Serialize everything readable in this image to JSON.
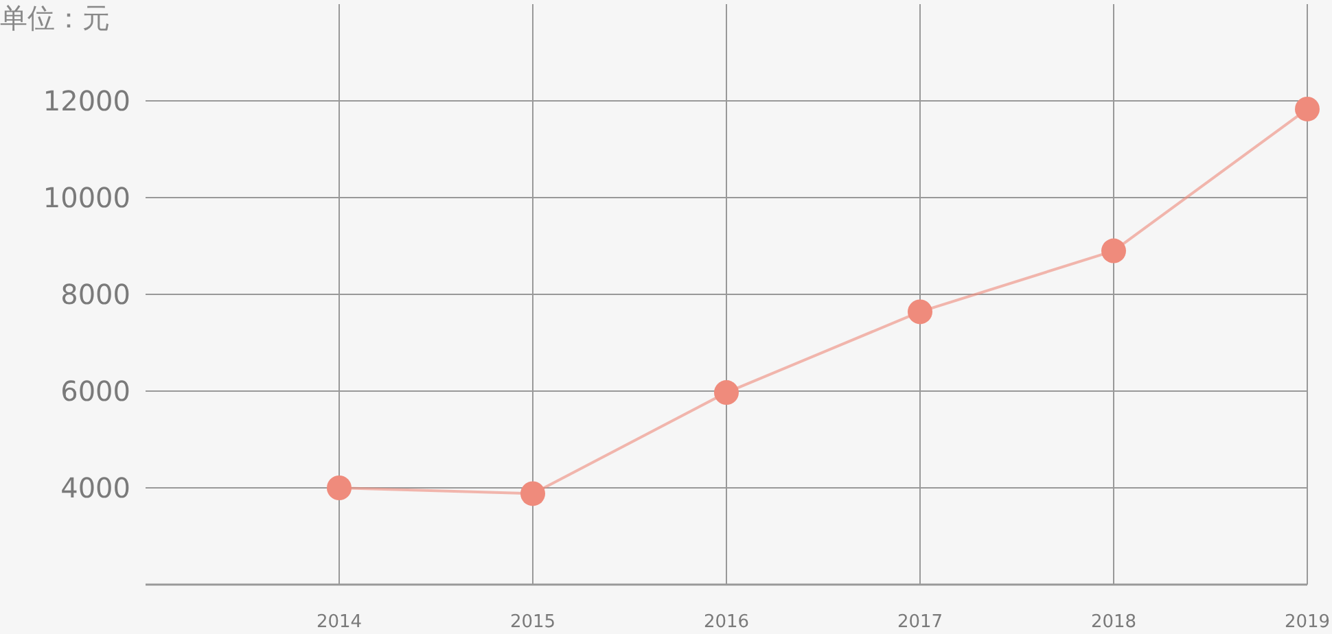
{
  "chart_data": {
    "type": "line",
    "ylabel": "单位：元",
    "x": [
      2014,
      2015,
      2016,
      2017,
      2018,
      2019
    ],
    "series": [
      {
        "color": "#ef8b7c",
        "values": [
          4000,
          3880,
          5970,
          7640,
          8900,
          11830
        ]
      }
    ],
    "xlim": [
      2013,
      2019
    ],
    "xticks": [
      2014,
      2015,
      2016,
      2017,
      2018,
      2019
    ],
    "ylim": [
      2000,
      14000
    ],
    "yticks": [
      4000,
      6000,
      8000,
      10000,
      12000
    ],
    "grid": true,
    "marker": "circle",
    "line_style": "solid"
  }
}
